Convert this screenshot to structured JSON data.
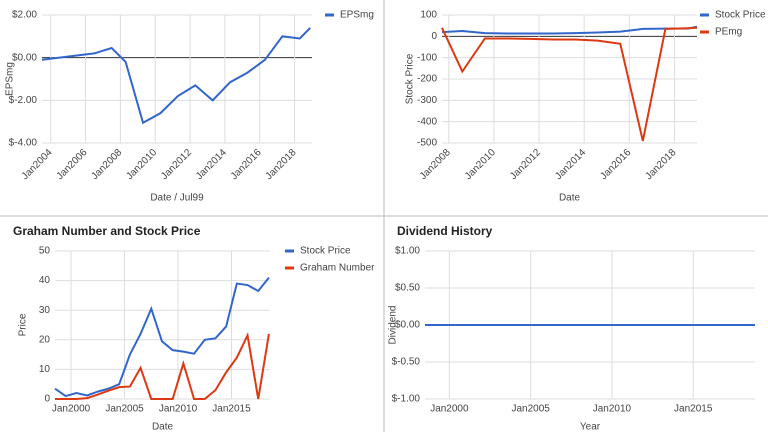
{
  "chart_data": [
    {
      "type": "line",
      "x_label": "Date / Jul99",
      "y_label": "EPSmg",
      "x": [
        2003.5,
        2004.5,
        2005.5,
        2006.5,
        2007.5,
        2008.3,
        2009.3,
        2010.3,
        2011.3,
        2012.3,
        2013.3,
        2014.3,
        2015.3,
        2016.3,
        2017.3,
        2018.3,
        2018.9
      ],
      "series": [
        {
          "name": "EPSmg",
          "color": "#3366cc",
          "values": [
            -0.1,
            0,
            0.1,
            0.2,
            0.45,
            -0.2,
            -3.05,
            -2.6,
            -1.8,
            -1.3,
            -2.0,
            -1.15,
            -0.7,
            -0.1,
            1.0,
            0.9,
            1.4
          ]
        }
      ],
      "xlim": [
        2003.5,
        2019
      ],
      "ylim": [
        -4,
        2
      ],
      "xticks": [
        {
          "value": 2004,
          "label": "Jan2004"
        },
        {
          "value": 2006,
          "label": "Jan2006"
        },
        {
          "value": 2008,
          "label": "Jan2008"
        },
        {
          "value": 2010,
          "label": "Jan2010"
        },
        {
          "value": 2012,
          "label": "Jan2012"
        },
        {
          "value": 2014,
          "label": "Jan2014"
        },
        {
          "value": 2016,
          "label": "Jan2016"
        },
        {
          "value": 2018,
          "label": "Jan2018"
        }
      ],
      "yticks": [
        {
          "value": 2,
          "label": "$2.00"
        },
        {
          "value": 0,
          "label": "$0.00"
        },
        {
          "value": -2,
          "label": "$-2.00"
        },
        {
          "value": -4,
          "label": "$-4.00"
        }
      ],
      "grid": true,
      "legend": "right"
    },
    {
      "type": "line",
      "x_label": "Date",
      "y_label": "Stock Price",
      "x": [
        2007.7,
        2008.6,
        2009.6,
        2010.6,
        2011.6,
        2012.6,
        2013.6,
        2014.6,
        2015.6,
        2016.6,
        2017.6,
        2018.6,
        2019
      ],
      "series": [
        {
          "name": "Stock Price",
          "color": "#3366cc",
          "values": [
            20,
            25,
            15,
            13,
            13,
            13,
            15,
            18,
            22,
            35,
            36,
            37,
            45
          ]
        },
        {
          "name": "PEmg",
          "color": "#dc3912",
          "values": [
            40,
            -165,
            -10,
            -10,
            -12,
            -15,
            -15,
            -20,
            -35,
            -490,
            35,
            38,
            40
          ]
        }
      ],
      "xlim": [
        2007.7,
        2019
      ],
      "ylim": [
        -500,
        100
      ],
      "xticks": [
        {
          "value": 2008,
          "label": "Jan2008"
        },
        {
          "value": 2010,
          "label": "Jan2010"
        },
        {
          "value": 2012,
          "label": "Jan2012"
        },
        {
          "value": 2014,
          "label": "Jan2014"
        },
        {
          "value": 2016,
          "label": "Jan2016"
        },
        {
          "value": 2018,
          "label": "Jan2018"
        }
      ],
      "yticks": [
        100,
        0,
        -100,
        -200,
        -300,
        -400,
        -500
      ],
      "grid": true,
      "legend": "right"
    },
    {
      "type": "line",
      "title": "Graham Number and Stock Price",
      "x_label": "Date",
      "y_label": "Price",
      "x": [
        1998.5,
        1999.5,
        2000.5,
        2001.5,
        2002.5,
        2003.5,
        2004.5,
        2005.5,
        2006.5,
        2007.5,
        2008.5,
        2009.5,
        2010.5,
        2011.5,
        2012.5,
        2013.5,
        2014.5,
        2015.5,
        2016.5,
        2017.5,
        2018.5
      ],
      "series": [
        {
          "name": "Stock Price",
          "color": "#3366cc",
          "values": [
            3.5,
            1,
            2,
            1.2,
            2.5,
            3.5,
            5,
            15,
            22,
            30.5,
            19.5,
            16.5,
            16,
            15.3,
            20,
            20.5,
            24.5,
            39,
            38.5,
            36.5,
            41
          ]
        },
        {
          "name": "Graham Number",
          "color": "#dc3912",
          "values": [
            0,
            0,
            0,
            0.3,
            1.5,
            2.8,
            4,
            4.2,
            10.5,
            0,
            0,
            0,
            12,
            0,
            0,
            3,
            9,
            14,
            21.5,
            0,
            22
          ]
        }
      ],
      "xlim": [
        1998.5,
        2018.6
      ],
      "ylim": [
        0,
        50
      ],
      "xticks": [
        {
          "value": 2000,
          "label": "Jan2000"
        },
        {
          "value": 2005,
          "label": "Jan2005"
        },
        {
          "value": 2010,
          "label": "Jan2010"
        },
        {
          "value": 2015,
          "label": "Jan2015"
        }
      ],
      "yticks": [
        0,
        10,
        20,
        30,
        40,
        50
      ],
      "grid": true,
      "legend": "right"
    },
    {
      "type": "line",
      "title": "Dividend History",
      "x_label": "Year",
      "y_label": "Dividend",
      "x": [
        1998.5,
        2008.5,
        2018.8
      ],
      "series": [
        {
          "color": "#3366cc",
          "values": [
            0,
            0,
            0
          ]
        }
      ],
      "xlim": [
        1998.5,
        2018.8
      ],
      "ylim": [
        -1,
        1
      ],
      "xticks": [
        {
          "value": 2000,
          "label": "Jan2000"
        },
        {
          "value": 2005,
          "label": "Jan2005"
        },
        {
          "value": 2010,
          "label": "Jan2010"
        },
        {
          "value": 2015,
          "label": "Jan2015"
        }
      ],
      "yticks": [
        {
          "value": 1,
          "label": "$1.00"
        },
        {
          "value": 0.5,
          "label": "$0.50"
        },
        {
          "value": 0,
          "label": "$0.00"
        },
        {
          "value": -0.5,
          "label": "$-0.50"
        },
        {
          "value": -1,
          "label": "$-1.00"
        }
      ],
      "grid": true
    }
  ]
}
